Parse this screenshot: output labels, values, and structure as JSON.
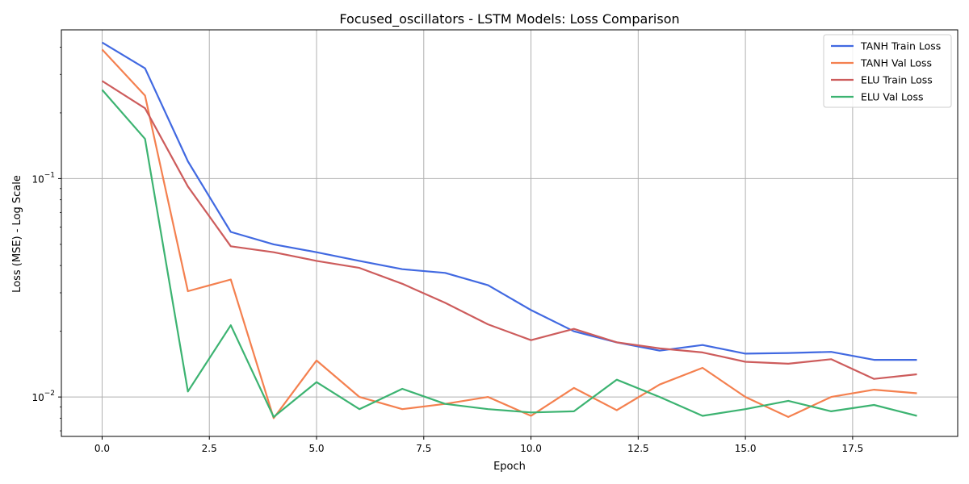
{
  "chart_data": {
    "type": "line",
    "title": "Focused_oscillators - LSTM Models: Loss Comparison",
    "xlabel": "Epoch",
    "ylabel": "Loss (MSE) - Log Scale",
    "yscale": "log",
    "xlim": [
      -0.95,
      19.95
    ],
    "ylim": [
      0.0066,
      0.48
    ],
    "grid": true,
    "legend_position": "top-right",
    "x_ticks": [
      0.0,
      2.5,
      5.0,
      7.5,
      10.0,
      12.5,
      15.0,
      17.5
    ],
    "x_tick_labels": [
      "0.0",
      "2.5",
      "5.0",
      "7.5",
      "10.0",
      "12.5",
      "15.0",
      "17.5"
    ],
    "y_ticks": [
      0.1,
      0.01
    ],
    "x": [
      0,
      1,
      2,
      3,
      4,
      5,
      6,
      7,
      8,
      9,
      10,
      11,
      12,
      13,
      14,
      15,
      16,
      17,
      18,
      19
    ],
    "series": [
      {
        "name": "TANH Train Loss",
        "color": "#4169e1",
        "values": [
          0.42,
          0.32,
          0.12,
          0.057,
          0.05,
          0.046,
          0.042,
          0.0385,
          0.037,
          0.0325,
          0.025,
          0.02,
          0.0178,
          0.0163,
          0.0173,
          0.0158,
          0.0159,
          0.0161,
          0.0148,
          0.0148
        ]
      },
      {
        "name": "TANH Val Loss",
        "color": "#f4804f",
        "values": [
          0.39,
          0.24,
          0.0305,
          0.0345,
          0.008,
          0.0147,
          0.01,
          0.0088,
          0.0093,
          0.01,
          0.0082,
          0.011,
          0.0087,
          0.0114,
          0.0136,
          0.01,
          0.0081,
          0.01,
          0.0108,
          0.0104
        ]
      },
      {
        "name": "ELU Train Loss",
        "color": "#cd5c5c",
        "values": [
          0.28,
          0.21,
          0.092,
          0.049,
          0.046,
          0.042,
          0.039,
          0.033,
          0.027,
          0.0215,
          0.0182,
          0.0205,
          0.0178,
          0.0167,
          0.016,
          0.0145,
          0.0142,
          0.0149,
          0.0121,
          0.0127
        ]
      },
      {
        "name": "ELU Val Loss",
        "color": "#3cb371",
        "values": [
          0.255,
          0.152,
          0.0106,
          0.0213,
          0.0081,
          0.0117,
          0.0088,
          0.0109,
          0.0093,
          0.0088,
          0.0085,
          0.0086,
          0.012,
          0.01,
          0.0082,
          0.0088,
          0.0096,
          0.0086,
          0.0092,
          0.0082
        ]
      }
    ]
  }
}
